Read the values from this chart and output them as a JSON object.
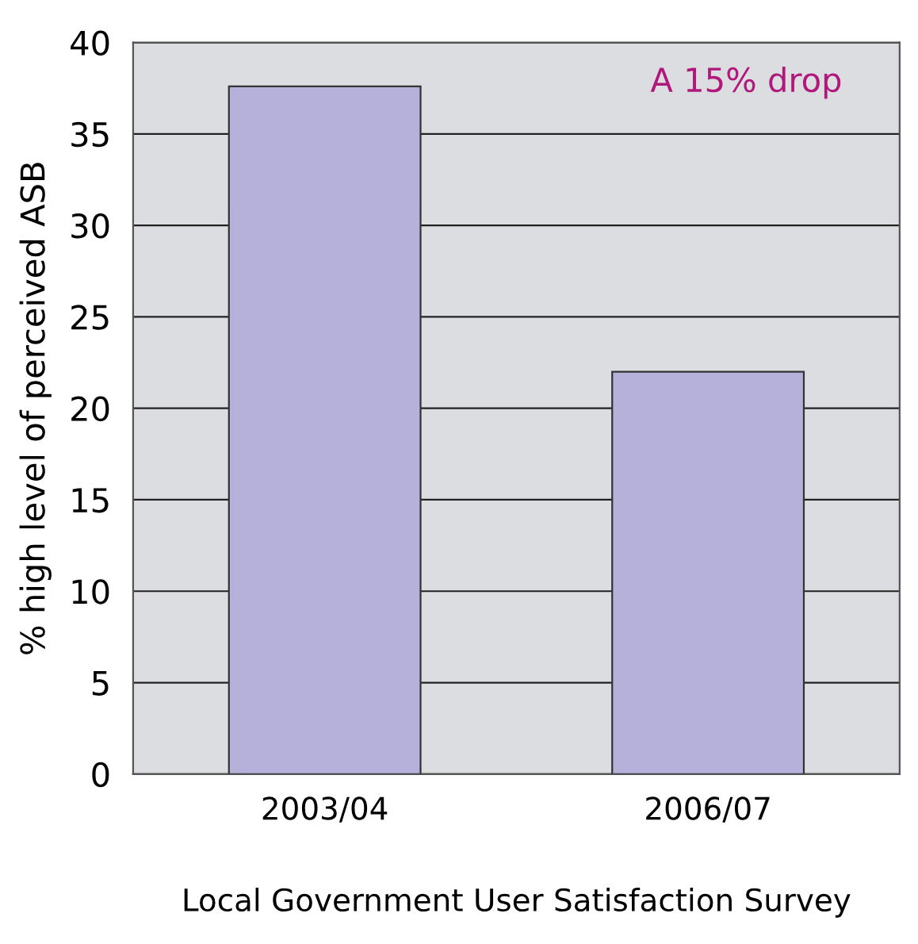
{
  "chart_data": {
    "type": "bar",
    "xlabel": "Local Government User Satisfaction Survey",
    "ylabel": "% high level of perceived ASB",
    "categories": [
      "2003/04",
      "2006/07"
    ],
    "values": [
      37.6,
      22.0
    ],
    "color": "#b5b1da",
    "ylim": [
      0,
      40
    ],
    "yticks": [
      0,
      5,
      10,
      15,
      20,
      25,
      30,
      35,
      40
    ],
    "grid": "y",
    "annotations": [
      "A 15% drop"
    ]
  }
}
